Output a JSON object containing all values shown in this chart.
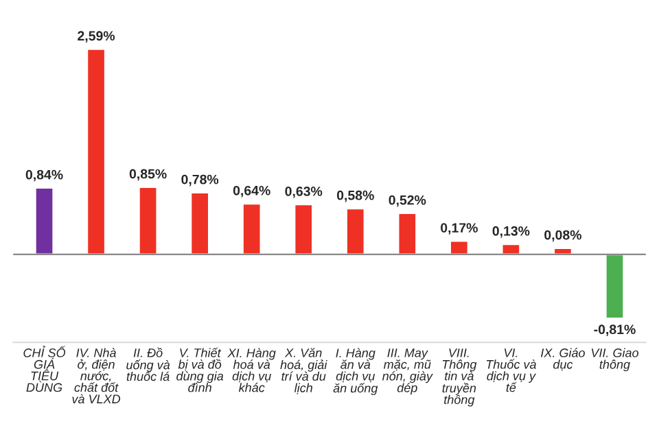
{
  "chart_data": {
    "type": "bar",
    "categories": [
      "CHỈ SỐ\nGIÁ\nTIÊU\nDÙNG",
      "IV. Nhà\nở, điện\nnước,\nchất đốt\nvà VLXD",
      "II. Đồ\nuống và\nthuốc lá",
      "V. Thiết\nbị và đồ\ndùng gia\nđình",
      "XI. Hàng\nhoá và\ndịch vụ\nkhác",
      "X. Văn\nhoá, giải\ntrí và du\nlịch",
      "I. Hàng\năn và\ndịch vụ\năn uống",
      "III. May\nmặc, mũ\nnón, giày\ndép",
      "VIII.\nThông\ntin và\ntruyền\nthông",
      "VI.\nThuốc và\ndịch vụ y\ntế",
      "IX. Giáo\ndục",
      "VII. Giao\nthông"
    ],
    "values": [
      0.84,
      2.59,
      0.85,
      0.78,
      0.64,
      0.63,
      0.58,
      0.52,
      0.17,
      0.13,
      0.08,
      -0.81
    ],
    "value_labels": [
      "0,84%",
      "2,59%",
      "0,85%",
      "0,78%",
      "0,64%",
      "0,63%",
      "0,58%",
      "0,52%",
      "0,17%",
      "0,13%",
      "0,08%",
      "-0,81%"
    ],
    "colors": [
      "#7030a0",
      "#ee3124",
      "#ee3124",
      "#ee3124",
      "#ee3124",
      "#ee3124",
      "#ee3124",
      "#ee3124",
      "#ee3124",
      "#ee3124",
      "#ee3124",
      "#4caf50"
    ],
    "grid": false,
    "legend": false
  }
}
